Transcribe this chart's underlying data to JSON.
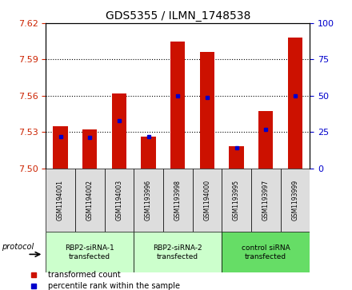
{
  "title": "GDS5355 / ILMN_1748538",
  "samples": [
    "GSM1194001",
    "GSM1194002",
    "GSM1194003",
    "GSM1193996",
    "GSM1193998",
    "GSM1194000",
    "GSM1193995",
    "GSM1193997",
    "GSM1193999"
  ],
  "transformed_count": [
    7.535,
    7.532,
    7.562,
    7.526,
    7.605,
    7.596,
    7.518,
    7.547,
    7.608
  ],
  "percentile_rank": [
    22,
    21,
    33,
    22,
    50,
    49,
    14,
    27,
    50
  ],
  "ylim_left": [
    7.5,
    7.62
  ],
  "ylim_right": [
    0,
    100
  ],
  "yticks_left": [
    7.5,
    7.53,
    7.56,
    7.59,
    7.62
  ],
  "yticks_right": [
    0,
    25,
    50,
    75,
    100
  ],
  "groups": [
    {
      "label": "RBP2-siRNA-1\ntransfected",
      "indices": [
        0,
        1,
        2
      ],
      "color": "#ccffcc"
    },
    {
      "label": "RBP2-siRNA-2\ntransfected",
      "indices": [
        3,
        4,
        5
      ],
      "color": "#ccffcc"
    },
    {
      "label": "control siRNA\ntransfected",
      "indices": [
        6,
        7,
        8
      ],
      "color": "#66dd66"
    }
  ],
  "bar_color": "#cc1100",
  "marker_color": "#0000cc",
  "bar_width": 0.5,
  "protocol_label": "protocol",
  "legend_items": [
    {
      "label": "transformed count",
      "color": "#cc1100"
    },
    {
      "label": "percentile rank within the sample",
      "color": "#0000cc"
    }
  ],
  "cell_bg": "#dddddd",
  "left_tick_color": "#cc2200",
  "right_tick_color": "#0000cc",
  "title_fontsize": 10
}
